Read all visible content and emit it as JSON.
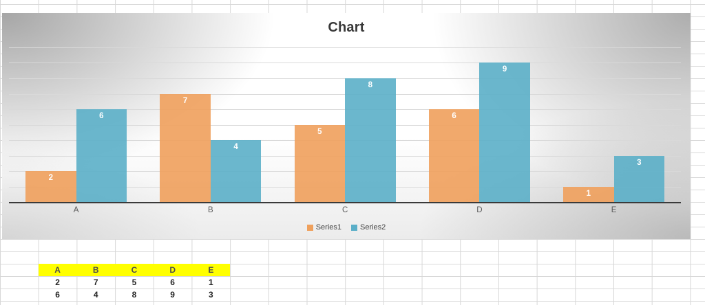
{
  "chart_data": {
    "type": "bar",
    "title": "Chart",
    "categories": [
      "A",
      "B",
      "C",
      "D",
      "E"
    ],
    "series": [
      {
        "name": "Series1",
        "color": "#EFA05C",
        "values": [
          2,
          7,
          5,
          6,
          1
        ]
      },
      {
        "name": "Series2",
        "color": "#5BAFC8",
        "values": [
          6,
          4,
          8,
          9,
          3
        ]
      }
    ],
    "ylim": [
      0,
      10
    ],
    "gridline_step": 1,
    "grid": "on",
    "legend_position": "bottom",
    "value_labels": "white, inside top of bars",
    "axis_labels_color": "#595959"
  },
  "table": {
    "header": {
      "labels": [
        "A",
        "B",
        "C",
        "D",
        "E"
      ],
      "bg": "#FFFF00"
    },
    "rows": [
      [
        "2",
        "7",
        "5",
        "6",
        "1"
      ],
      [
        "6",
        "4",
        "8",
        "9",
        "3"
      ]
    ]
  },
  "sheet": {
    "gridline_color": "#d9d9d9"
  }
}
